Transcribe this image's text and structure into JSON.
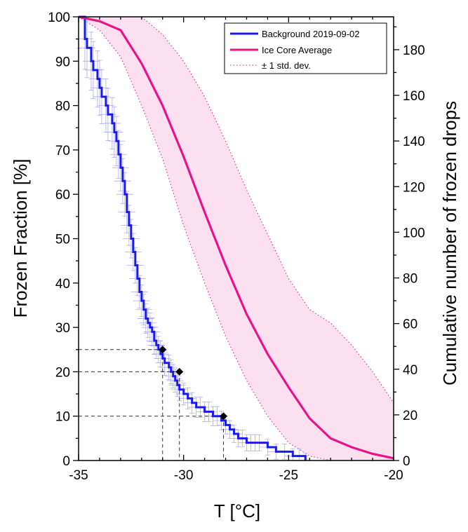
{
  "chart_data": {
    "type": "line",
    "xlabel": "T [°C]",
    "ylabel": "Frozen Fraction [%]",
    "y2label": "Cumulative number of frozen drops",
    "xlim": [
      -35,
      -20
    ],
    "ylim": [
      0,
      100
    ],
    "y2lim": [
      0,
      194.4
    ],
    "x_ticks": [
      "-35",
      "-30",
      "-25",
      "-20"
    ],
    "y_ticks": [
      "0",
      "10",
      "20",
      "30",
      "40",
      "50",
      "60",
      "70",
      "80",
      "90",
      "100"
    ],
    "y2_ticks": [
      "0",
      "20",
      "40",
      "60",
      "80",
      "100",
      "120",
      "140",
      "160",
      "180"
    ],
    "legend": {
      "position": "top-right",
      "entries": [
        {
          "label": "Background 2019-09-02",
          "color": "#1a1af0",
          "style": "solid"
        },
        {
          "label": "Ice Core Average",
          "color": "#e6138c",
          "style": "solid"
        },
        {
          "label": "± 1 std. dev.",
          "color": "#e6138c",
          "style": "dotted"
        }
      ]
    },
    "colors": {
      "background_series": "#1a1af0",
      "error_bars": "#aaaaf5",
      "ice_core": "#e6138c",
      "band_fill": "#fde0ef",
      "markers": "#000000",
      "reference_lines": "#333333"
    },
    "series": [
      {
        "name": "Background 2019-09-02",
        "step": true,
        "error_bars": true,
        "x": [
          -35.0,
          -34.7,
          -34.6,
          -34.4,
          -34.3,
          -34.1,
          -34.0,
          -33.9,
          -33.7,
          -33.6,
          -33.4,
          -33.3,
          -33.2,
          -33.1,
          -33.0,
          -32.9,
          -32.8,
          -32.7,
          -32.6,
          -32.5,
          -32.4,
          -32.3,
          -32.2,
          -32.1,
          -32.0,
          -31.9,
          -31.8,
          -31.7,
          -31.6,
          -31.5,
          -31.4,
          -31.3,
          -31.2,
          -31.1,
          -31.0,
          -30.9,
          -30.7,
          -30.6,
          -30.5,
          -30.4,
          -30.3,
          -30.2,
          -30.0,
          -29.8,
          -29.6,
          -29.4,
          -29.2,
          -29.0,
          -28.8,
          -28.6,
          -28.4,
          -28.2,
          -28.0,
          -27.8,
          -27.6,
          -27.4,
          -27.2,
          -27.0,
          -26.8,
          -26.6,
          -26.4,
          -26.0,
          -25.6,
          -25.2,
          -24.8,
          -24.5,
          -24.2
        ],
        "y": [
          100,
          95,
          93,
          90,
          88,
          86,
          84,
          82,
          80,
          78,
          76,
          74,
          72,
          69,
          66,
          63,
          60,
          56,
          53,
          50,
          47,
          44,
          41,
          38,
          36,
          34,
          32,
          31,
          30,
          29,
          27,
          26,
          25,
          24,
          23,
          22,
          21,
          20,
          19,
          18,
          17,
          16,
          15,
          14,
          13,
          12,
          12,
          11,
          11,
          10,
          10,
          9,
          8,
          7,
          6,
          5,
          5,
          4,
          4,
          4,
          4,
          3,
          2,
          2,
          1,
          1,
          0
        ]
      },
      {
        "name": "Ice Core Average",
        "x": [
          -35.0,
          -34.0,
          -33.0,
          -32.0,
          -31.0,
          -30.0,
          -29.0,
          -28.0,
          -27.0,
          -26.0,
          -25.0,
          -24.0,
          -23.0,
          -22.0,
          -21.0,
          -20.0
        ],
        "y": [
          100,
          99,
          97,
          89.5,
          80,
          68.5,
          56,
          44,
          33,
          24,
          16.5,
          9.5,
          5,
          3,
          1.5,
          0.5
        ]
      },
      {
        "name": "± 1 std. dev.",
        "band": true,
        "x": [
          -35.0,
          -34.0,
          -33.0,
          -32.0,
          -31.0,
          -30.0,
          -29.0,
          -28.0,
          -27.0,
          -26.0,
          -25.0,
          -24.0,
          -23.0,
          -22.0,
          -21.0,
          -20.0
        ],
        "upper": [
          100,
          100,
          100,
          100,
          96,
          90,
          82,
          72,
          61,
          51,
          41,
          34,
          31,
          26,
          20,
          13
        ],
        "lower": [
          100,
          97,
          91,
          80,
          68,
          53,
          40,
          28,
          18,
          10,
          4,
          1,
          0,
          0,
          0,
          0
        ]
      }
    ],
    "annotations": [
      {
        "type": "marker",
        "x": -31.0,
        "y": 25
      },
      {
        "type": "marker",
        "x": -30.2,
        "y": 20
      },
      {
        "type": "marker",
        "x": -28.1,
        "y": 10
      }
    ]
  }
}
